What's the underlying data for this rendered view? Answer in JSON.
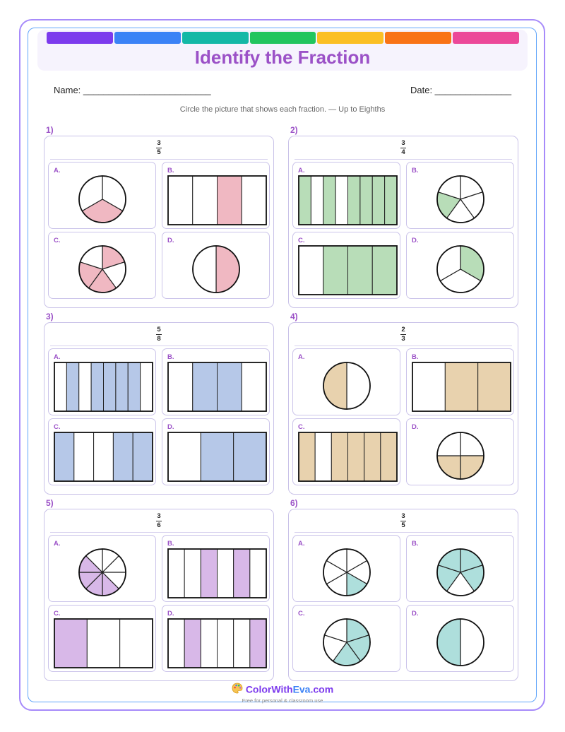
{
  "header": {
    "title": "Identify the Fraction",
    "stripe_colors": [
      "#7c3aed",
      "#3b82f6",
      "#14b8a6",
      "#22c55e",
      "#fbbf24",
      "#f97316",
      "#ec4899"
    ]
  },
  "fields": {
    "name_label": "Name: _________________________",
    "date_label": "Date: _______________"
  },
  "instructions": "Circle the picture that shows each fraction. — Up to Eighths",
  "questions": [
    {
      "number": "1)",
      "num": "3",
      "den": "5",
      "color": "#f0b8c2",
      "options": [
        {
          "label": "A.",
          "type": "pie",
          "parts": 3,
          "shaded": [
            1
          ]
        },
        {
          "label": "B.",
          "type": "bar",
          "parts": 4,
          "shaded": [
            2
          ]
        },
        {
          "label": "C.",
          "type": "pie",
          "parts": 5,
          "shaded": [
            0,
            2,
            3
          ]
        },
        {
          "label": "D.",
          "type": "pie",
          "parts": 2,
          "shaded": [
            0
          ]
        }
      ]
    },
    {
      "number": "2)",
      "num": "3",
      "den": "4",
      "color": "#b8ddb8",
      "options": [
        {
          "label": "A.",
          "type": "bar",
          "parts": 8,
          "shaded": [
            0,
            2,
            4,
            5,
            6,
            7
          ]
        },
        {
          "label": "B.",
          "type": "pie",
          "parts": 5,
          "shaded": [
            3
          ]
        },
        {
          "label": "C.",
          "type": "bar",
          "parts": 4,
          "shaded": [
            1,
            2,
            3
          ]
        },
        {
          "label": "D.",
          "type": "pie",
          "parts": 3,
          "shaded": [
            0
          ]
        }
      ]
    },
    {
      "number": "3)",
      "num": "5",
      "den": "8",
      "color": "#b6c8e8",
      "options": [
        {
          "label": "A.",
          "type": "bar",
          "parts": 8,
          "shaded": [
            1,
            3,
            4,
            5,
            6
          ]
        },
        {
          "label": "B.",
          "type": "bar",
          "parts": 4,
          "shaded": [
            1,
            2
          ]
        },
        {
          "label": "C.",
          "type": "bar",
          "parts": 5,
          "shaded": [
            0,
            3,
            4
          ]
        },
        {
          "label": "D.",
          "type": "bar",
          "parts": 3,
          "shaded": [
            1,
            2
          ]
        }
      ]
    },
    {
      "number": "4)",
      "num": "2",
      "den": "3",
      "color": "#e8d2ae",
      "options": [
        {
          "label": "A.",
          "type": "pie",
          "parts": 2,
          "shaded": [
            1
          ]
        },
        {
          "label": "B.",
          "type": "bar",
          "parts": 3,
          "shaded": [
            1,
            2
          ]
        },
        {
          "label": "C.",
          "type": "bar",
          "parts": 6,
          "shaded": [
            0,
            2,
            3,
            4,
            5
          ]
        },
        {
          "label": "D.",
          "type": "pie",
          "parts": 4,
          "shaded": [
            1,
            2
          ]
        }
      ]
    },
    {
      "number": "5)",
      "num": "3",
      "den": "6",
      "color": "#d8b8e8",
      "options": [
        {
          "label": "A.",
          "type": "pie",
          "parts": 8,
          "shaded": [
            3,
            4,
            5,
            6
          ]
        },
        {
          "label": "B.",
          "type": "bar",
          "parts": 6,
          "shaded": [
            2,
            4
          ]
        },
        {
          "label": "C.",
          "type": "bar",
          "parts": 3,
          "shaded": [
            0
          ]
        },
        {
          "label": "D.",
          "type": "bar",
          "parts": 6,
          "shaded": [
            1,
            5
          ]
        }
      ]
    },
    {
      "number": "6)",
      "num": "3",
      "den": "5",
      "color": "#aedfdc",
      "options": [
        {
          "label": "A.",
          "type": "pie",
          "parts": 6,
          "shaded": [
            2
          ]
        },
        {
          "label": "B.",
          "type": "pie",
          "parts": 5,
          "shaded": [
            0,
            1,
            3,
            4
          ]
        },
        {
          "label": "C.",
          "type": "pie",
          "parts": 5,
          "shaded": [
            0,
            1,
            2
          ]
        },
        {
          "label": "D.",
          "type": "pie",
          "parts": 2,
          "shaded": [
            1
          ]
        }
      ]
    }
  ],
  "footer": {
    "brand_main": "ColorWith",
    "brand_accent": "Eva",
    "brand_suffix": ".com",
    "tagline": "Free for personal & classroom use"
  }
}
